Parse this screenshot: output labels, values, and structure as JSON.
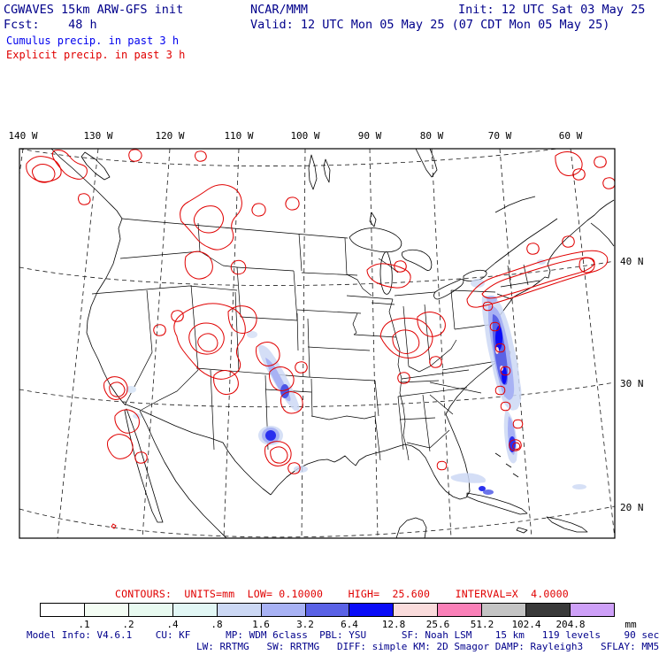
{
  "header": {
    "title": "CGWAVES 15km ARW-GFS init",
    "org": "NCAR/MMM",
    "init_line": "Init: 12 UTC Sat 03 May 25",
    "fcst_line": "Fcst:    48 h",
    "valid_line": "Valid: 12 UTC Mon 05 May 25 (07 CDT Mon 05 May 25)",
    "cumulus_legend": "Cumulus precip. in past 3 h",
    "explicit_legend": "Explicit precip. in past 3 h",
    "colors": {
      "title": "#00008b",
      "cumulus": "#0000ee",
      "explicit": "#e00000"
    }
  },
  "map": {
    "lon_labels": [
      "140 W",
      "130 W",
      "120 W",
      "110 W",
      "100 W",
      "90 W",
      "80 W",
      "70 W",
      "60 W"
    ],
    "lat_labels": [
      "40 N",
      "30 N",
      "20 N"
    ]
  },
  "legend": {
    "contour_info": "CONTOURS:  UNITS=mm  LOW= 0.10000    HIGH=  25.600    INTERVAL=X  4.0000",
    "contour_color": "#e00000",
    "colorbar": {
      "labels": [
        ".1",
        ".2",
        ".4",
        ".8",
        "1.6",
        "3.2",
        "6.4",
        "12.8",
        "25.6",
        "51.2",
        "102.4",
        "204.8"
      ],
      "unit": "mm",
      "colors": [
        "#ffffff",
        "#f4fdf4",
        "#e8faf0",
        "#e2f7f5",
        "#ccd8f4",
        "#a8b2f4",
        "#5a62e6",
        "#0a0cf8",
        "#fadcdc",
        "#fa80b8",
        "#c4c4c4",
        "#3a3a3a",
        "#cea0f8"
      ]
    }
  },
  "model_info": {
    "line1": "Model Info: V4.6.1    CU: KF      MP: WDM 6class  PBL: YSU      SF: Noah LSM    15 km   119 levels    90 sec",
    "line2": "LW: RRTMG   SW: RRTMG   DIFF: simple KM: 2D Smagor DAMP: Rayleigh3   SFLAY: MM5"
  }
}
